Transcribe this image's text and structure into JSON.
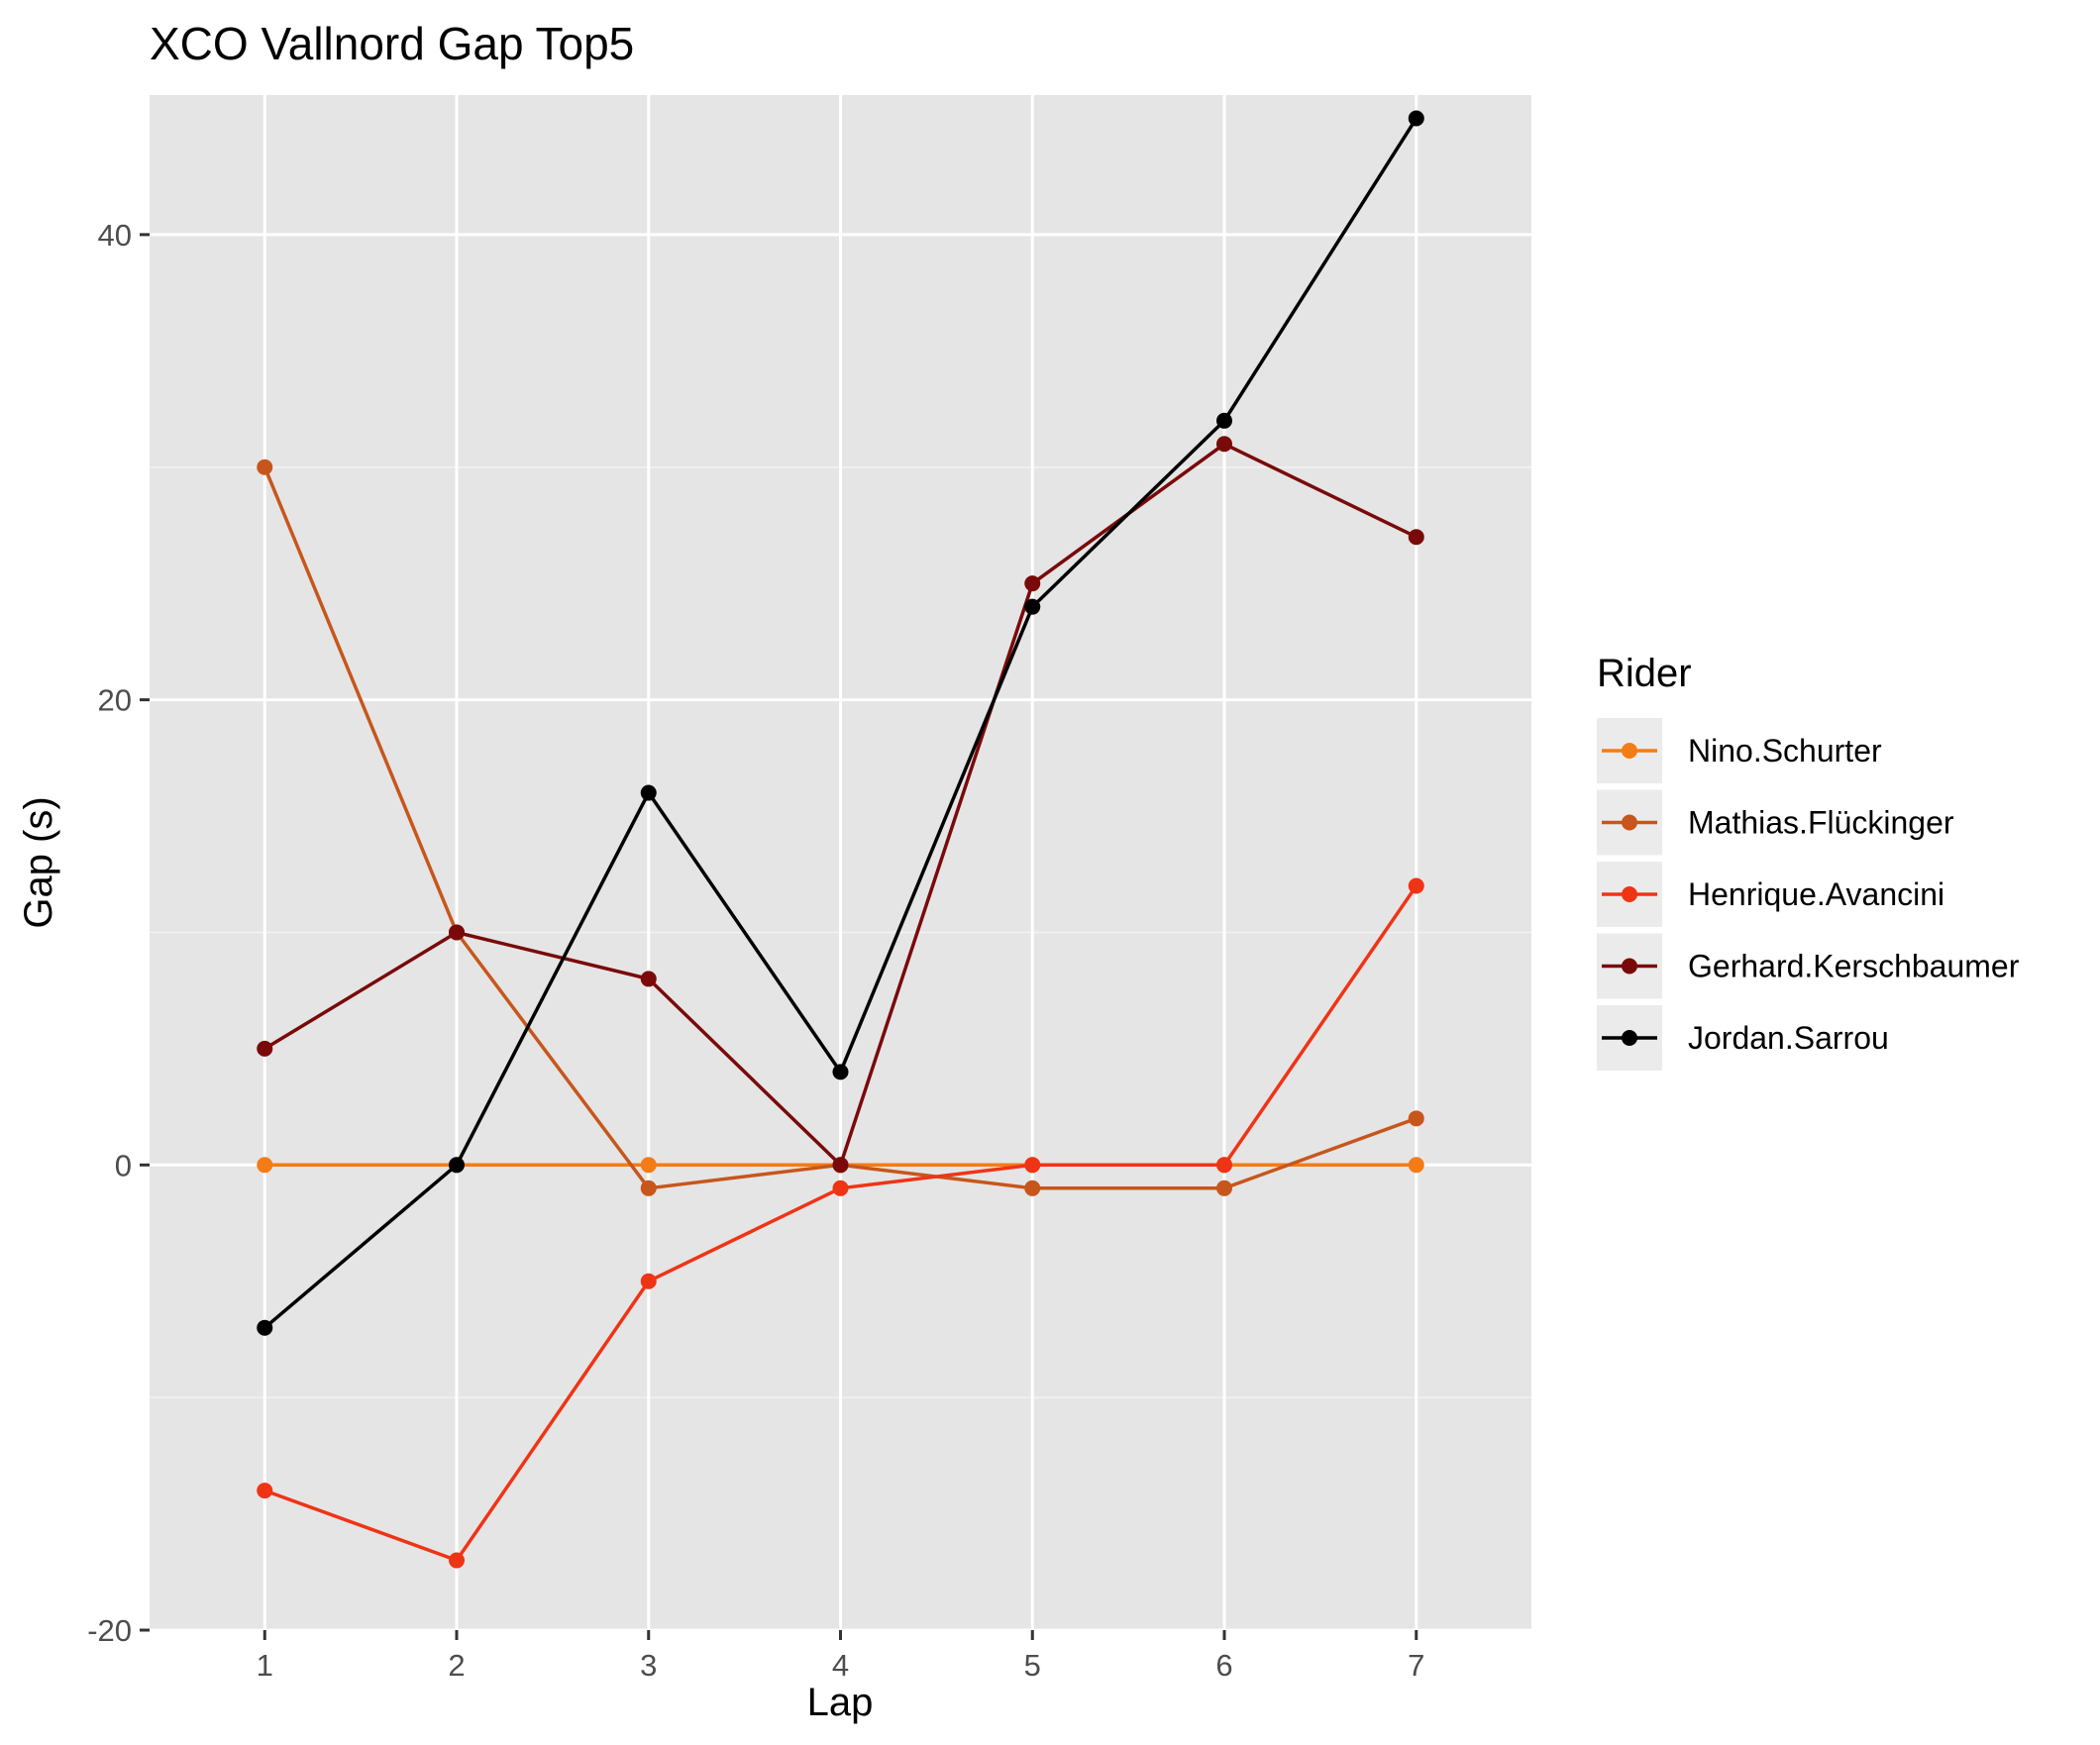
{
  "chart_data": {
    "type": "line",
    "title": "XCO Vallnord Gap Top5",
    "xlabel": "Lap",
    "ylabel": "Gap (s)",
    "x": [
      1,
      2,
      3,
      4,
      5,
      6,
      7
    ],
    "x_ticks": [
      "1",
      "2",
      "3",
      "4",
      "5",
      "6",
      "7"
    ],
    "xlim": [
      0.4,
      7.6
    ],
    "y_ticks": [
      -20,
      0,
      20,
      40
    ],
    "ylim": [
      -20,
      46
    ],
    "grid": true,
    "panel_background": "#e5e5e5",
    "legend_title": "Rider",
    "legend_position": "right",
    "series": [
      {
        "name": "Nino.Schurter",
        "color": "#f47c16",
        "values": [
          0,
          0,
          0,
          0,
          0,
          0,
          0
        ]
      },
      {
        "name": "Mathias.Flückinger",
        "color": "#c7561c",
        "values": [
          30,
          10,
          -1,
          0,
          -1,
          -1,
          2
        ]
      },
      {
        "name": "Henrique.Avancini",
        "color": "#ef3415",
        "values": [
          -14,
          -17,
          -5,
          -1,
          0,
          0,
          12
        ]
      },
      {
        "name": "Gerhard.Kerschbaumer",
        "color": "#7a0a0a",
        "values": [
          5,
          10,
          8,
          0,
          25,
          31,
          27
        ]
      },
      {
        "name": "Jordan.Sarrou",
        "color": "#000000",
        "values": [
          -7,
          0,
          16,
          4,
          24,
          32,
          45
        ]
      }
    ]
  }
}
